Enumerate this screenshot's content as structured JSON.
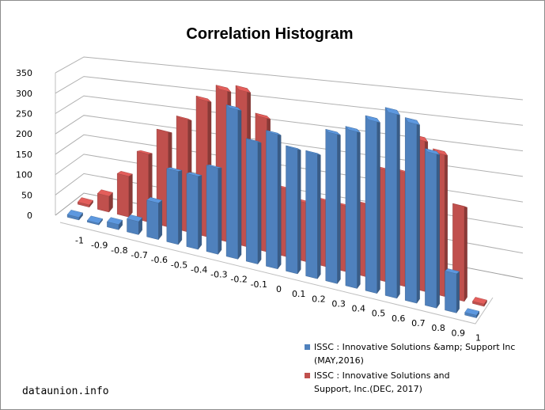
{
  "chart_data": {
    "type": "bar",
    "title": "Correlation Histogram",
    "categories": [
      "-1",
      "-0.9",
      "-0.8",
      "-0.7",
      "-0.6",
      "-0.5",
      "-0.4",
      "-0.3",
      "-0.2",
      "-0.1",
      "0",
      "0.1",
      "0.2",
      "0.3",
      "0.4",
      "0.5",
      "0.6",
      "0.7",
      "0.8",
      "0.9",
      "1"
    ],
    "y_ticks": [
      "0",
      "50",
      "100",
      "150",
      "200",
      "250",
      "300",
      "350"
    ],
    "ylim": [
      0,
      350
    ],
    "grid": true,
    "legend_position": "bottom-right",
    "series": [
      {
        "name": "ISSC : Innovative Solutions &amp; Support Inc (MAY,2016)",
        "legend_lines": [
          "ISSC : Innovative Solutions &amp; Support Inc",
          "(MAY,2016)"
        ],
        "color": "#4f81bd",
        "values": [
          5,
          3,
          10,
          25,
          70,
          140,
          140,
          165,
          290,
          235,
          260,
          240,
          240,
          290,
          305,
          335,
          360,
          350,
          300,
          75,
          5
        ]
      },
      {
        "name": "ISSC : Innovative Solutions and Support, Inc.(DEC, 2017)",
        "legend_lines": [
          "ISSC : Innovative Solutions and",
          "Support, Inc.(DEC, 2017)"
        ],
        "color": "#c0504d",
        "values": [
          5,
          35,
          90,
          150,
          210,
          250,
          305,
          340,
          350,
          300,
          150,
          130,
          145,
          145,
          160,
          250,
          255,
          340,
          320,
          210,
          5
        ]
      }
    ]
  },
  "watermark": "dataunion.info"
}
